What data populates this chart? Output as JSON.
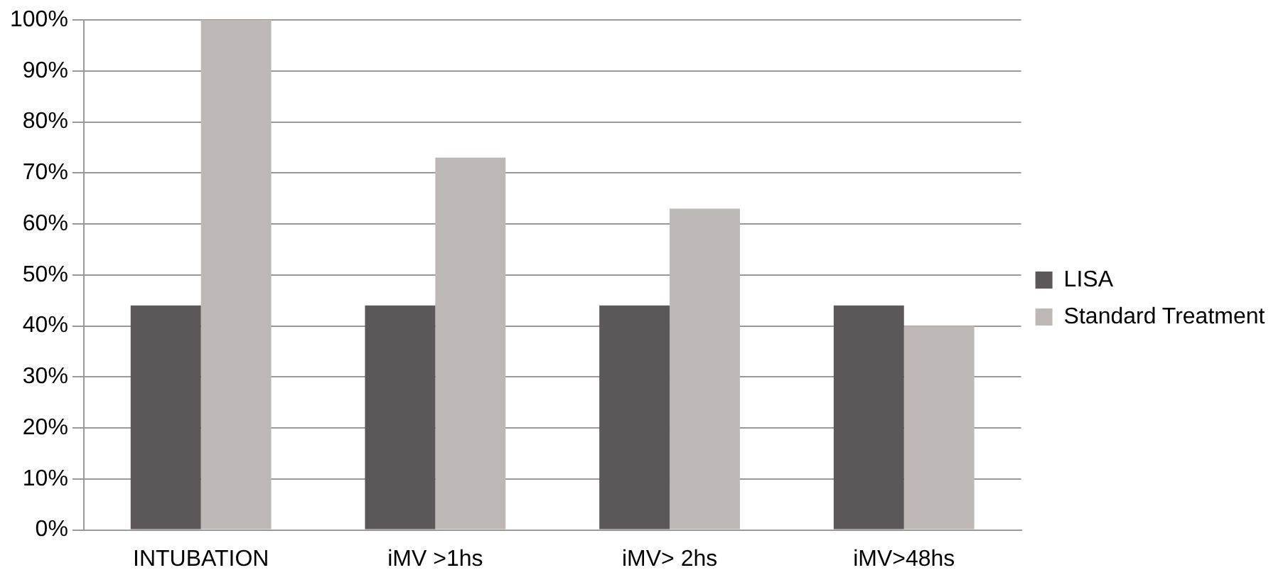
{
  "chart_data": {
    "type": "bar",
    "categories": [
      "INTUBATION",
      "iMV >1hs",
      "iMV> 2hs",
      "iMV>48hs"
    ],
    "series": [
      {
        "name": "LISA",
        "color": "#5c5759",
        "values": [
          44,
          44,
          44,
          44
        ]
      },
      {
        "name": "Standard Treatment",
        "color": "#bdb8b5",
        "values": [
          100,
          73,
          63,
          40
        ]
      }
    ],
    "ylim": [
      0,
      100
    ],
    "yticks": [
      {
        "value": 0,
        "label": "0%"
      },
      {
        "value": 10,
        "label": "10%"
      },
      {
        "value": 20,
        "label": "20%"
      },
      {
        "value": 30,
        "label": "30%"
      },
      {
        "value": 40,
        "label": "40%"
      },
      {
        "value": 50,
        "label": "50%"
      },
      {
        "value": 60,
        "label": "60%"
      },
      {
        "value": 70,
        "label": "70%"
      },
      {
        "value": 80,
        "label": "80%"
      },
      {
        "value": 90,
        "label": "90%"
      },
      {
        "value": 100,
        "label": "100%"
      }
    ],
    "grid": "y",
    "legend": "right"
  }
}
